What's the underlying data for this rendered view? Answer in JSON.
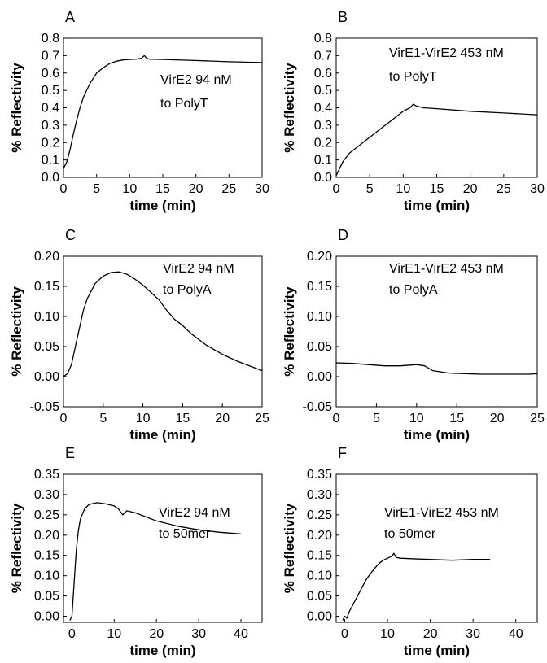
{
  "chart_data": [
    {
      "panel_label": "A",
      "type": "line",
      "xlabel": "time (min)",
      "ylabel": "% Reflectivity",
      "xlim": [
        0,
        30
      ],
      "ylim": [
        0,
        0.8
      ],
      "xticks": [
        0,
        5,
        10,
        15,
        20,
        25,
        30
      ],
      "yticks": [
        0.0,
        0.1,
        0.2,
        0.3,
        0.4,
        0.5,
        0.6,
        0.7,
        0.8
      ],
      "ytick_labels": [
        "0.0",
        "0.1",
        "0.2",
        "0.3",
        "0.4",
        "0.5",
        "0.6",
        "0.7",
        "0.8"
      ],
      "annotation": [
        "VirE2 94 nM",
        "to PolyT"
      ],
      "series": [
        {
          "x": [
            0,
            0.5,
            1,
            1.5,
            2,
            2.5,
            3,
            4,
            5,
            6,
            7,
            8,
            9,
            10,
            11,
            11.8,
            12.2,
            12.6,
            13,
            15,
            20,
            25,
            30
          ],
          "y": [
            0.05,
            0.09,
            0.16,
            0.25,
            0.33,
            0.4,
            0.46,
            0.54,
            0.6,
            0.63,
            0.655,
            0.668,
            0.675,
            0.678,
            0.68,
            0.685,
            0.7,
            0.685,
            0.68,
            0.678,
            0.672,
            0.665,
            0.66
          ]
        }
      ]
    },
    {
      "panel_label": "B",
      "type": "line",
      "xlabel": "time (min)",
      "ylabel": "% Reflectivity",
      "xlim": [
        0,
        30
      ],
      "ylim": [
        0,
        0.8
      ],
      "xticks": [
        0,
        5,
        10,
        15,
        20,
        25,
        30
      ],
      "yticks": [
        0.0,
        0.1,
        0.2,
        0.3,
        0.4,
        0.5,
        0.6,
        0.7,
        0.8
      ],
      "ytick_labels": [
        "0.0",
        "0.1",
        "0.2",
        "0.3",
        "0.4",
        "0.5",
        "0.6",
        "0.7",
        "0.8"
      ],
      "annotation": [
        "VirE1-VirE2 453 nM",
        "to PolyT"
      ],
      "series": [
        {
          "x": [
            0,
            0.5,
            1,
            2,
            3,
            4,
            5,
            6,
            7,
            8,
            9,
            10,
            11,
            11.5,
            12,
            13,
            15,
            20,
            25,
            30
          ],
          "y": [
            0.01,
            0.05,
            0.09,
            0.14,
            0.17,
            0.2,
            0.23,
            0.26,
            0.29,
            0.32,
            0.35,
            0.38,
            0.4,
            0.42,
            0.41,
            0.4,
            0.395,
            0.38,
            0.37,
            0.36
          ]
        }
      ]
    },
    {
      "panel_label": "C",
      "type": "line",
      "xlabel": "time (min)",
      "ylabel": "% Reflectivity",
      "xlim": [
        0,
        25
      ],
      "ylim": [
        -0.05,
        0.2
      ],
      "xticks": [
        0,
        5,
        10,
        15,
        20,
        25
      ],
      "yticks": [
        -0.05,
        0.0,
        0.05,
        0.1,
        0.15,
        0.2
      ],
      "ytick_labels": [
        "-0.05",
        "0.00",
        "0.05",
        "0.10",
        "0.15",
        "0.20"
      ],
      "annotation": [
        "VirE2 94 nM",
        "to PolyA"
      ],
      "series": [
        {
          "x": [
            0,
            0.5,
            1,
            1.5,
            2,
            2.5,
            3,
            4,
            5,
            6,
            7,
            8,
            9,
            10,
            11,
            12,
            13,
            14,
            15,
            16,
            18,
            20,
            22,
            24,
            25
          ],
          "y": [
            0.0,
            0.005,
            0.02,
            0.05,
            0.08,
            0.11,
            0.13,
            0.155,
            0.167,
            0.173,
            0.174,
            0.17,
            0.162,
            0.152,
            0.14,
            0.128,
            0.11,
            0.095,
            0.085,
            0.072,
            0.052,
            0.037,
            0.025,
            0.015,
            0.01
          ]
        }
      ]
    },
    {
      "panel_label": "D",
      "type": "line",
      "xlabel": "time (min)",
      "ylabel": "% Reflectivity",
      "xlim": [
        0,
        25
      ],
      "ylim": [
        -0.05,
        0.2
      ],
      "xticks": [
        0,
        5,
        10,
        15,
        20,
        25
      ],
      "yticks": [
        -0.05,
        0.0,
        0.05,
        0.1,
        0.15,
        0.2
      ],
      "ytick_labels": [
        "-0.05",
        "0.00",
        "0.05",
        "0.10",
        "0.15",
        "0.20"
      ],
      "annotation": [
        "VirE1-VirE2 453 nM",
        "to PolyA"
      ],
      "series": [
        {
          "x": [
            0,
            2,
            4,
            6,
            8,
            10,
            11,
            12,
            13,
            14,
            16,
            18,
            20,
            22,
            24,
            25
          ],
          "y": [
            0.023,
            0.022,
            0.02,
            0.018,
            0.018,
            0.02,
            0.018,
            0.01,
            0.008,
            0.006,
            0.005,
            0.004,
            0.004,
            0.004,
            0.004,
            0.005
          ]
        }
      ]
    },
    {
      "panel_label": "E",
      "type": "line",
      "xlabel": "time (min)",
      "ylabel": "% Reflectivity",
      "xlim": [
        -2,
        45
      ],
      "ylim": [
        -0.015,
        0.35
      ],
      "xticks": [
        0,
        10,
        20,
        30,
        40
      ],
      "yticks": [
        0.0,
        0.05,
        0.1,
        0.15,
        0.2,
        0.25,
        0.3,
        0.35
      ],
      "ytick_labels": [
        "0.00",
        "0.05",
        "0.10",
        "0.15",
        "0.20",
        "0.25",
        "0.30",
        "0.35"
      ],
      "annotation": [
        "VirE2 94 nM",
        "to 50mer"
      ],
      "series": [
        {
          "x": [
            -0.5,
            0,
            0.5,
            1,
            1.5,
            2,
            3,
            4,
            5,
            6,
            8,
            10,
            11,
            12,
            12.5,
            13,
            15,
            20,
            25,
            30,
            35,
            40
          ],
          "y": [
            -0.01,
            0.0,
            0.08,
            0.16,
            0.21,
            0.24,
            0.265,
            0.275,
            0.278,
            0.28,
            0.277,
            0.272,
            0.265,
            0.25,
            0.255,
            0.26,
            0.255,
            0.235,
            0.222,
            0.213,
            0.207,
            0.203
          ]
        }
      ]
    },
    {
      "panel_label": "F",
      "type": "line",
      "xlabel": "time (min)",
      "ylabel": "% Reflectivity",
      "xlim": [
        -2,
        45
      ],
      "ylim": [
        -0.015,
        0.35
      ],
      "xticks": [
        0,
        10,
        20,
        30,
        40
      ],
      "yticks": [
        0.0,
        0.05,
        0.1,
        0.15,
        0.2,
        0.25,
        0.3,
        0.35
      ],
      "ytick_labels": [
        "0.00",
        "0.05",
        "0.10",
        "0.15",
        "0.20",
        "0.25",
        "0.30",
        "0.35"
      ],
      "annotation": [
        "VirE1-VirE2 453 nM",
        "to 50mer"
      ],
      "series": [
        {
          "x": [
            -0.5,
            0,
            0.5,
            1,
            2,
            3,
            4,
            5,
            6,
            7,
            8,
            9,
            10,
            11,
            11.5,
            12,
            13,
            15,
            20,
            25,
            30,
            34
          ],
          "y": [
            -0.01,
            0.0,
            -0.005,
            0.01,
            0.03,
            0.05,
            0.07,
            0.09,
            0.105,
            0.118,
            0.13,
            0.138,
            0.143,
            0.148,
            0.155,
            0.145,
            0.143,
            0.142,
            0.14,
            0.138,
            0.14,
            0.14
          ]
        }
      ]
    }
  ]
}
